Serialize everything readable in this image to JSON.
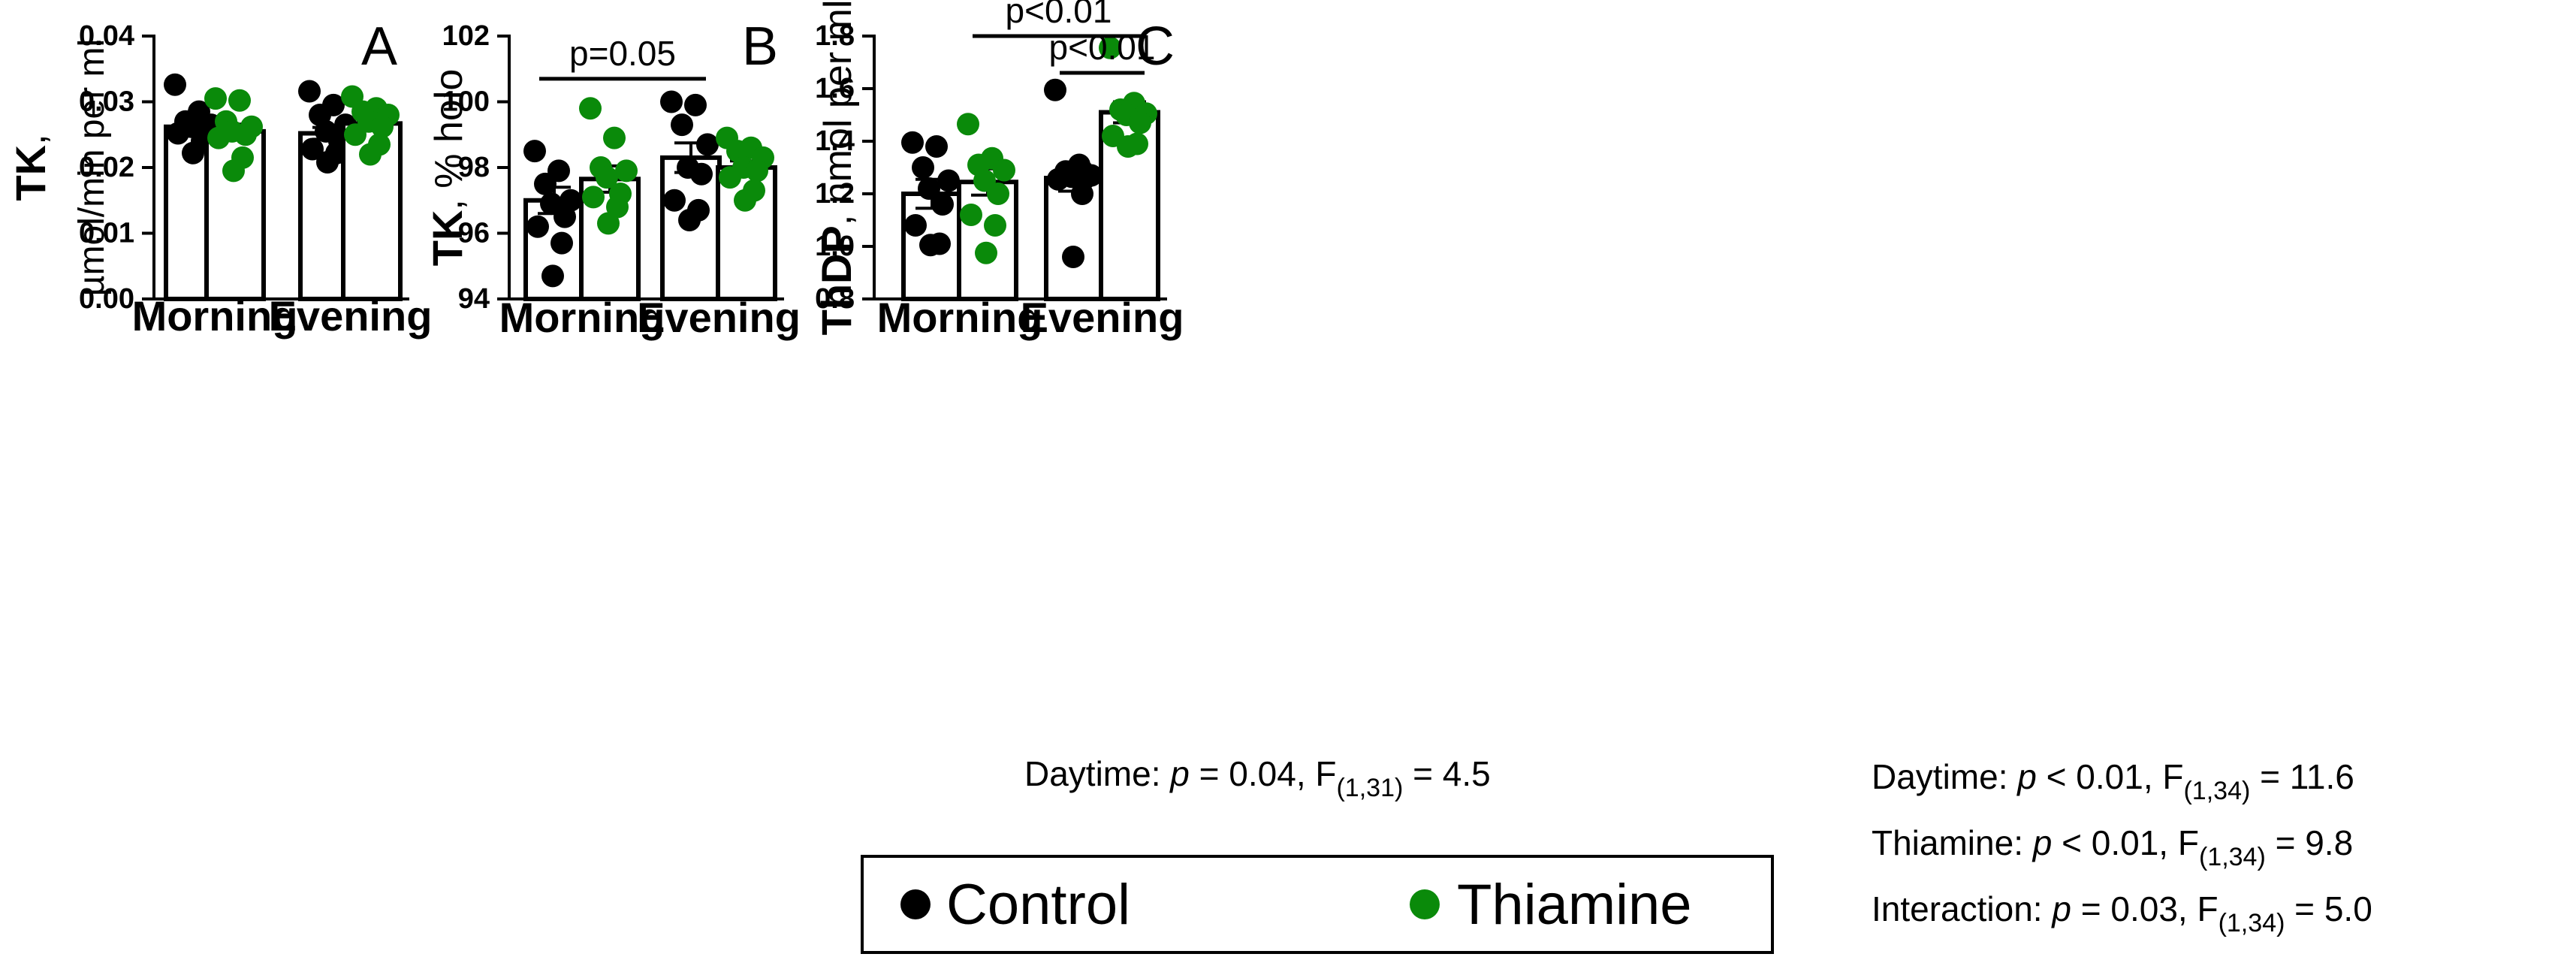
{
  "colors": {
    "control": "#000000",
    "thiamine": "#0a8a0a",
    "bar_fill": "#ffffff",
    "bar_edge": "#000000"
  },
  "legend": {
    "control": "Control",
    "thiamine": "Thiamine"
  },
  "chart_data": [
    {
      "type": "bar",
      "panel": "A",
      "ylabel_bold": "TK",
      "ylabel_line1_suffix": ",",
      "ylabel_line2": "µmol/min per ml",
      "ylim": [
        0,
        0.04
      ],
      "yticks": [
        "0.00",
        "0.01",
        "0.02",
        "0.03",
        "0.04"
      ],
      "yvalues": [
        0,
        0.01,
        0.02,
        0.03,
        0.04
      ],
      "categories": [
        "Morning",
        "Evening"
      ],
      "series": [
        {
          "name": "Control",
          "values": [
            0.0262,
            0.0252
          ],
          "sem": [
            0.0009,
            0.0009
          ],
          "points": [
            [
              0.0326,
              0.0285,
              0.027,
              0.0265,
              0.0262,
              0.0258,
              0.0252,
              0.024,
              0.0222
            ],
            [
              0.0316,
              0.0295,
              0.028,
              0.0265,
              0.0255,
              0.024,
              0.0228,
              0.0222,
              0.0208
            ]
          ]
        },
        {
          "name": "Thiamine",
          "values": [
            0.0255,
            0.0267
          ],
          "sem": [
            0.0011,
            0.0008
          ],
          "points": [
            [
              0.0305,
              0.0302,
              0.027,
              0.0262,
              0.0255,
              0.025,
              0.0245,
              0.0215,
              0.0195
            ],
            [
              0.0308,
              0.029,
              0.0285,
              0.028,
              0.027,
              0.0262,
              0.025,
              0.0235,
              0.022
            ]
          ]
        }
      ],
      "annotations": []
    },
    {
      "type": "bar",
      "panel": "B",
      "ylabel_bold": "TK",
      "ylabel_line1_suffix": ", % holo",
      "ylim": [
        94,
        102
      ],
      "yticks": [
        "94",
        "96",
        "98",
        "100",
        "102"
      ],
      "yvalues": [
        94,
        96,
        98,
        100,
        102
      ],
      "categories": [
        "Morning",
        "Evening"
      ],
      "series": [
        {
          "name": "Control",
          "values": [
            97.0,
            98.3
          ],
          "sem": [
            0.4,
            0.45
          ],
          "points": [
            [
              98.5,
              97.9,
              97.5,
              97.0,
              96.9,
              96.5,
              96.2,
              95.7,
              94.7
            ],
            [
              100.0,
              99.9,
              99.3,
              98.7,
              98.0,
              97.8,
              97.0,
              96.7,
              96.4
            ]
          ]
        },
        {
          "name": "Thiamine",
          "values": [
            97.65,
            98.0
          ],
          "sem": [
            0.4,
            0.2
          ],
          "points": [
            [
              99.8,
              98.9,
              98.0,
              97.9,
              97.7,
              97.2,
              97.1,
              96.8,
              96.3
            ],
            [
              98.9,
              98.6,
              98.5,
              98.3,
              98.0,
              97.9,
              97.7,
              97.3,
              97.0
            ]
          ]
        }
      ],
      "annotations": [
        {
          "label": "p=0.05",
          "from_group": 0,
          "from_series": 0,
          "to_group": 1,
          "to_series": 0,
          "y": 100.7
        }
      ],
      "footnote": {
        "prefix": "Daytime: ",
        "p_sym": "p",
        "mid": " = 0.04, F",
        "sub": "(1,31)",
        "tail": " = 4.5"
      }
    },
    {
      "type": "bar",
      "panel": "C",
      "ylabel_bold": "ThDP",
      "ylabel_line1_suffix": ", nmol per ml",
      "ylim": [
        0.8,
        1.8
      ],
      "yticks": [
        "0.8",
        "1.0",
        "1.2",
        "1.4",
        "1.6",
        "1.8"
      ],
      "yvalues": [
        0.8,
        1.0,
        1.2,
        1.4,
        1.6,
        1.8
      ],
      "categories": [
        "Morning",
        "Evening"
      ],
      "series": [
        {
          "name": "Control",
          "values": [
            1.2,
            1.26
          ],
          "sem": [
            0.055,
            0.05
          ],
          "points": [
            [
              1.395,
              1.38,
              1.3,
              1.25,
              1.22,
              1.16,
              1.08,
              1.01,
              1.005
            ],
            [
              1.595,
              1.31,
              1.285,
              1.27,
              1.265,
              1.26,
              1.255,
              1.2,
              0.96
            ]
          ]
        },
        {
          "name": "Thiamine",
          "values": [
            1.245,
            1.51
          ],
          "sem": [
            0.05,
            0.04
          ],
          "points": [
            [
              1.465,
              1.335,
              1.31,
              1.29,
              1.25,
              1.2,
              1.12,
              1.08,
              0.975
            ],
            [
              1.755,
              1.545,
              1.52,
              1.505,
              1.5,
              1.47,
              1.42,
              1.39,
              1.38
            ]
          ]
        }
      ],
      "annotations": [
        {
          "label": "p<0.01",
          "from_group": 0,
          "from_series": 1,
          "to_group": 1,
          "to_series": 1,
          "y": 1.8
        },
        {
          "label": "p<0.01",
          "from_group": 1,
          "from_series": 0,
          "to_group": 1,
          "to_series": 1,
          "y": 1.66
        }
      ],
      "footnotes": [
        {
          "prefix": "Daytime: ",
          "p_sym": "p",
          "mid": " < 0.01, F",
          "sub": "(1,34)",
          "tail": " = 11.6"
        },
        {
          "prefix": "Thiamine: ",
          "p_sym": "p",
          "mid": " < 0.01, F",
          "sub": "(1,34)",
          "tail": " = 9.8"
        },
        {
          "prefix": "Interaction: ",
          "p_sym": "p",
          "mid": " = 0.03, F",
          "sub": "(1,34)",
          "tail": " = 5.0"
        }
      ]
    }
  ]
}
